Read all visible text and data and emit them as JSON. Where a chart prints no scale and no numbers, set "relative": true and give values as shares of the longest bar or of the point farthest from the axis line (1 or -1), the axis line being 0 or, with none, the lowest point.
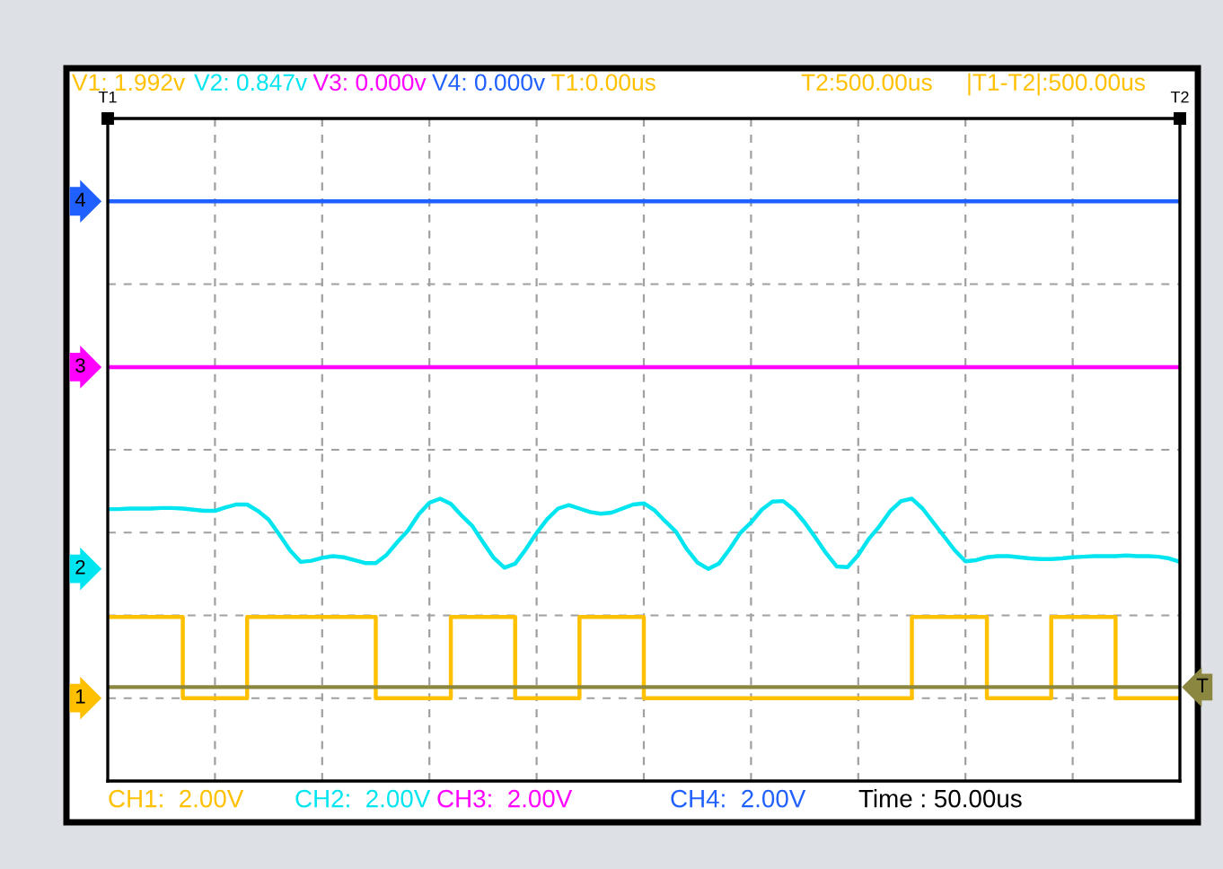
{
  "chart_data": {
    "type": "line",
    "relative": true,
    "categories": [
      null,
      null,
      null,
      null,
      null,
      null,
      null,
      null,
      null,
      null,
      null,
      null,
      null,
      null,
      null,
      null,
      null,
      null,
      null,
      null,
      null,
      null,
      null,
      null,
      null,
      null,
      null,
      null,
      null,
      null,
      null,
      null,
      null,
      null,
      null,
      null,
      null,
      null,
      null,
      null,
      null,
      null,
      null,
      null,
      null,
      null,
      null,
      null,
      null,
      null,
      null,
      null,
      null,
      null,
      null,
      null,
      null,
      null,
      null,
      null,
      null,
      null,
      null,
      null,
      null,
      null,
      null,
      null,
      null,
      null,
      null,
      null,
      null,
      null,
      null,
      null,
      null,
      null,
      null,
      null,
      null,
      null,
      null,
      null,
      null,
      null,
      null,
      null,
      null,
      null,
      null,
      null,
      null,
      null,
      null,
      null,
      null,
      null,
      null,
      null,
      null
    ],
    "grid": true,
    "line_style": "solid",
    "series": [
      {
        "name": "1",
        "type": "step",
        "color": "#ffc000",
        "values": [
          0.283,
          0.283,
          0.283,
          0.283,
          0.283,
          0.283,
          0.283,
          0.143,
          0.143,
          0.143,
          0.143,
          0.143,
          0.143,
          0.283,
          0.283,
          0.283,
          0.283,
          0.283,
          0.283,
          0.283,
          0.283,
          0.283,
          0.283,
          0.283,
          0.283,
          0.143,
          0.143,
          0.143,
          0.143,
          0.143,
          0.143,
          0.143,
          0.283,
          0.283,
          0.283,
          0.283,
          0.283,
          0.283,
          0.143,
          0.143,
          0.143,
          0.143,
          0.143,
          0.143,
          0.283,
          0.283,
          0.283,
          0.283,
          0.283,
          0.283,
          0.143,
          0.143,
          0.143,
          0.143,
          0.143,
          0.143,
          0.143,
          0.143,
          0.143,
          0.143,
          0.143,
          0.143,
          0.143,
          0.143,
          0.143,
          0.143,
          0.143,
          0.143,
          0.143,
          0.143,
          0.143,
          0.143,
          0.143,
          0.143,
          0.143,
          0.283,
          0.283,
          0.283,
          0.283,
          0.283,
          0.283,
          0.283,
          0.143,
          0.143,
          0.143,
          0.143,
          0.143,
          0.143,
          0.283,
          0.283,
          0.283,
          0.283,
          0.283,
          0.283,
          0.143,
          0.143,
          0.143,
          0.143,
          0.143,
          0.143,
          0.143
        ]
      },
      {
        "name": "2",
        "color": "#00e5f0",
        "values": [
          0.469,
          0.469,
          0.47,
          0.47,
          0.47,
          0.471,
          0.471,
          0.47,
          0.468,
          0.466,
          0.466,
          0.472,
          0.477,
          0.477,
          0.466,
          0.451,
          0.425,
          0.398,
          0.378,
          0.38,
          0.385,
          0.388,
          0.386,
          0.381,
          0.376,
          0.376,
          0.39,
          0.412,
          0.432,
          0.46,
          0.48,
          0.487,
          0.478,
          0.458,
          0.44,
          0.412,
          0.385,
          0.368,
          0.375,
          0.4,
          0.428,
          0.452,
          0.47,
          0.476,
          0.47,
          0.464,
          0.461,
          0.463,
          0.47,
          0.477,
          0.479,
          0.467,
          0.448,
          0.43,
          0.4,
          0.377,
          0.366,
          0.375,
          0.4,
          0.428,
          0.446,
          0.468,
          0.482,
          0.483,
          0.468,
          0.446,
          0.42,
          0.393,
          0.37,
          0.369,
          0.39,
          0.418,
          0.44,
          0.466,
          0.483,
          0.487,
          0.47,
          0.446,
          0.422,
          0.398,
          0.379,
          0.381,
          0.386,
          0.388,
          0.388,
          0.386,
          0.384,
          0.383,
          0.383,
          0.384,
          0.386,
          0.387,
          0.388,
          0.388,
          0.388,
          0.389,
          0.388,
          0.388,
          0.387,
          0.384,
          0.378
        ]
      },
      {
        "name": "3",
        "color": "#ff00ff",
        "values": [
          0.714,
          0.714,
          0.714,
          0.714,
          0.714,
          0.714,
          0.714,
          0.714,
          0.714,
          0.714,
          0.714,
          0.714,
          0.714,
          0.714,
          0.714,
          0.714,
          0.714,
          0.714,
          0.714,
          0.714,
          0.714,
          0.714,
          0.714,
          0.714,
          0.714,
          0.714,
          0.714,
          0.714,
          0.714,
          0.714,
          0.714,
          0.714,
          0.714,
          0.714,
          0.714,
          0.714,
          0.714,
          0.714,
          0.714,
          0.714,
          0.714,
          0.714,
          0.714,
          0.714,
          0.714,
          0.714,
          0.714,
          0.714,
          0.714,
          0.714,
          0.714,
          0.714,
          0.714,
          0.714,
          0.714,
          0.714,
          0.714,
          0.714,
          0.714,
          0.714,
          0.714,
          0.714,
          0.714,
          0.714,
          0.714,
          0.714,
          0.714,
          0.714,
          0.714,
          0.714,
          0.714,
          0.714,
          0.714,
          0.714,
          0.714,
          0.714,
          0.714,
          0.714,
          0.714,
          0.714,
          0.714,
          0.714,
          0.714,
          0.714,
          0.714,
          0.714,
          0.714,
          0.714,
          0.714,
          0.714,
          0.714,
          0.714,
          0.714,
          0.714,
          0.714,
          0.714,
          0.714,
          0.714,
          0.714,
          0.714,
          0.714
        ]
      },
      {
        "name": "4",
        "color": "#2060ff",
        "values": [
          1,
          1,
          1,
          1,
          1,
          1,
          1,
          1,
          1,
          1,
          1,
          1,
          1,
          1,
          1,
          1,
          1,
          1,
          1,
          1,
          1,
          1,
          1,
          1,
          1,
          1,
          1,
          1,
          1,
          1,
          1,
          1,
          1,
          1,
          1,
          1,
          1,
          1,
          1,
          1,
          1,
          1,
          1,
          1,
          1,
          1,
          1,
          1,
          1,
          1,
          1,
          1,
          1,
          1,
          1,
          1,
          1,
          1,
          1,
          1,
          1,
          1,
          1,
          1,
          1,
          1,
          1,
          1,
          1,
          1,
          1,
          1,
          1,
          1,
          1,
          1,
          1,
          1,
          1,
          1,
          1,
          1,
          1,
          1,
          1,
          1,
          1,
          1,
          1,
          1,
          1,
          1,
          1,
          1,
          1,
          1,
          1,
          1,
          1,
          1,
          1
        ]
      }
    ],
    "ref_lines": [
      {
        "axis": "y",
        "value": 0.162,
        "label": "T",
        "color": "#8b8640"
      }
    ],
    "annotations": [
      "V1: 1.992v",
      "V2: 0.847v",
      "V3: 0.000v",
      "V4: 0.000v",
      "T1:0.00us",
      "T2:500.00us",
      "|T1-T2|:500.00us",
      "T1",
      "T2",
      "CH1:  2.00V",
      "CH2:  2.00V",
      "CH3:  2.00V",
      "CH4:  2.00V",
      "Time : 50.00us"
    ]
  }
}
